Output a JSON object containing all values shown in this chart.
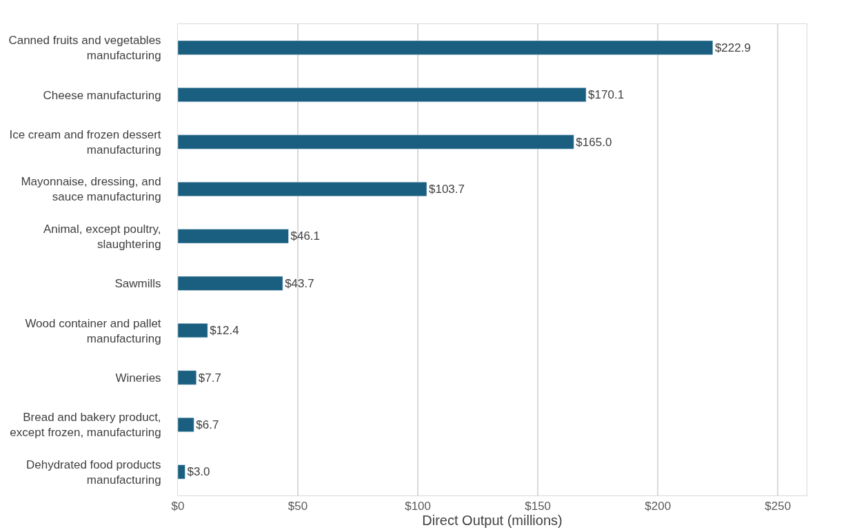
{
  "chart_data": {
    "type": "bar",
    "orientation": "horizontal",
    "categories": [
      "Canned fruits and vegetables manufacturing",
      "Cheese manufacturing",
      "Ice cream and frozen dessert manufacturing",
      "Mayonnaise, dressing, and sauce manufacturing",
      "Animal, except poultry, slaughtering",
      "Sawmills",
      "Wood container and pallet manufacturing",
      "Wineries",
      "Bread and bakery product, except frozen, manufacturing",
      "Dehydrated food products manufacturing"
    ],
    "values": [
      222.9,
      170.1,
      165.0,
      103.7,
      46.1,
      43.7,
      12.4,
      7.7,
      6.7,
      3.0
    ],
    "value_labels": [
      "$222.9",
      "$170.1",
      "$165.0",
      "$103.7",
      "$46.1",
      "$43.7",
      "$12.4",
      "$7.7",
      "$6.7",
      "$3.0"
    ],
    "color": "#1a5f80",
    "xlabel": "Direct Output (millions)",
    "xlim": [
      0,
      262
    ],
    "xticks": [
      {
        "value": 0,
        "label": "$0"
      },
      {
        "value": 50,
        "label": "$50"
      },
      {
        "value": 100,
        "label": "$100"
      },
      {
        "value": 150,
        "label": "$150"
      },
      {
        "value": 200,
        "label": "$200"
      },
      {
        "value": 250,
        "label": "$250"
      }
    ],
    "grid": "x",
    "legend": false
  }
}
